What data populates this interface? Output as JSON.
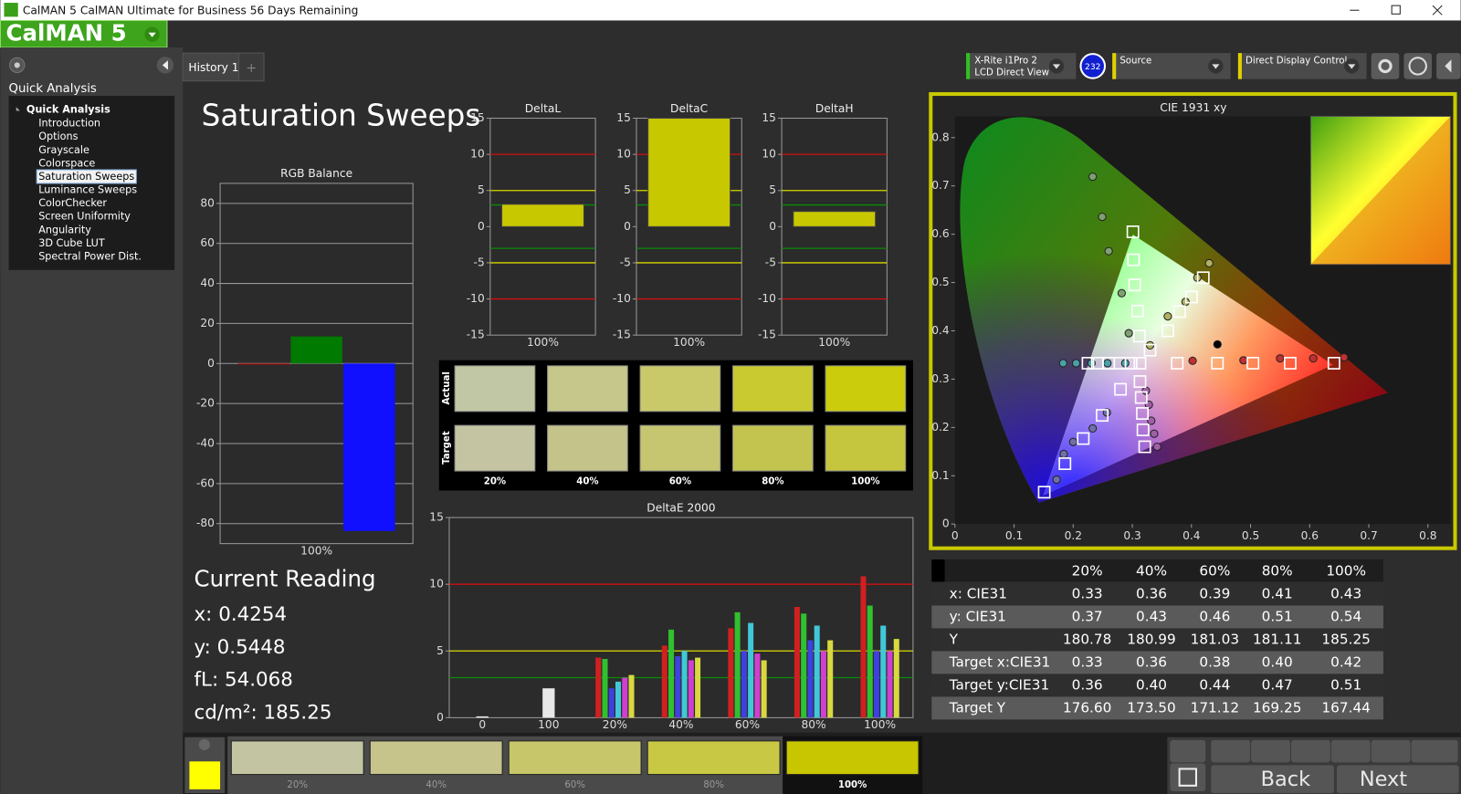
{
  "window": {
    "title": "CalMAN 5 CalMAN Ultimate for Business 56 Days Remaining",
    "logo": "CalMAN 5"
  },
  "sidebar": {
    "heading": "Quick Analysis",
    "tree_root": "Quick Analysis",
    "items": [
      "Introduction",
      "Options",
      "Grayscale",
      "Colorspace",
      "Saturation Sweeps",
      "Luminance Sweeps",
      "ColorChecker",
      "Screen Uniformity",
      "Angularity",
      "3D Cube LUT",
      "Spectral Power Dist."
    ],
    "selected": 4
  },
  "tabs": [
    "History 1"
  ],
  "devices": {
    "meter": "X-Rite i1Pro 2",
    "meter_mode": "LCD Direct View",
    "badge": "232",
    "source": "Source",
    "display": "Direct Display Control"
  },
  "page_title": "Saturation Sweeps",
  "current_reading": {
    "title": "Current Reading",
    "lines": [
      "x: 0.4254",
      "y: 0.5448",
      "fL: 54.068",
      "cd/m²: 185.25"
    ]
  },
  "swatches": {
    "row_labels": [
      "Actual",
      "Target"
    ],
    "labels": [
      "20%",
      "40%",
      "60%",
      "80%",
      "100%"
    ],
    "actual_colors": [
      "#c1c6a4",
      "#c6c78a",
      "#c9c96a",
      "#c9ca30",
      "#cacc0c"
    ],
    "target_colors": [
      "#c4c4a2",
      "#c4c38a",
      "#c6c570",
      "#c3c350",
      "#c5c53e"
    ]
  },
  "table": {
    "header": [
      "20%",
      "40%",
      "60%",
      "80%",
      "100%"
    ],
    "rows": [
      {
        "label": "x: CIE31",
        "cells": [
          "0.33",
          "0.36",
          "0.39",
          "0.41",
          "0.43"
        ]
      },
      {
        "label": "y: CIE31",
        "cells": [
          "0.37",
          "0.43",
          "0.46",
          "0.51",
          "0.54"
        ]
      },
      {
        "label": "Y",
        "cells": [
          "180.78",
          "180.99",
          "181.03",
          "181.11",
          "185.25"
        ]
      },
      {
        "label": "Target x:CIE31",
        "cells": [
          "0.33",
          "0.36",
          "0.38",
          "0.40",
          "0.42"
        ]
      },
      {
        "label": "Target y:CIE31",
        "cells": [
          "0.36",
          "0.40",
          "0.44",
          "0.47",
          "0.51"
        ]
      },
      {
        "label": "Target Y",
        "cells": [
          "176.60",
          "173.50",
          "171.12",
          "169.25",
          "167.44"
        ]
      }
    ]
  },
  "filmstrip": {
    "labels": [
      "20%",
      "40%",
      "60%",
      "80%",
      "100%"
    ],
    "colors": [
      "#c3c5a2",
      "#c6c48a",
      "#c7c66a",
      "#c8c845",
      "#c8c600"
    ],
    "selected": 4
  },
  "nav": {
    "back": "Back",
    "next": "Next"
  },
  "chart_data": [
    {
      "type": "bar",
      "title": "RGB Balance",
      "categories": [
        "100%"
      ],
      "series": [
        {
          "color": "#b00000",
          "values": [
            -0.5
          ]
        },
        {
          "color": "#007a00",
          "values": [
            13.5
          ]
        },
        {
          "color": "#1010ff",
          "values": [
            -83.7
          ]
        }
      ],
      "ylim": [
        -90,
        90
      ],
      "yticks": [
        -80,
        -60,
        -40,
        -20,
        0,
        20,
        40,
        60,
        80
      ],
      "grid": true
    },
    {
      "type": "bar",
      "title": "DeltaL",
      "categories": [
        "100%"
      ],
      "values": [
        3.1
      ],
      "color": "#c8c800",
      "ylim": [
        -15,
        15
      ],
      "yticks": [
        -15,
        -10,
        -5,
        0,
        5,
        10,
        15
      ],
      "reference_lines": [
        {
          "value": 10,
          "color": "#d01010"
        },
        {
          "value": 5,
          "color": "#d8d800"
        },
        {
          "value": 3,
          "color": "#0a8a0a"
        },
        {
          "value": -3,
          "color": "#0a8a0a"
        },
        {
          "value": -5,
          "color": "#d8d800"
        },
        {
          "value": -10,
          "color": "#d01010"
        }
      ]
    },
    {
      "type": "bar",
      "title": "DeltaC",
      "categories": [
        "100%"
      ],
      "values": [
        15
      ],
      "color": "#c8c800",
      "ylim": [
        -15,
        15
      ],
      "yticks": [
        -15,
        -10,
        -5,
        0,
        5,
        10,
        15
      ],
      "reference_lines": [
        {
          "value": 10,
          "color": "#d01010"
        },
        {
          "value": 5,
          "color": "#d8d800"
        },
        {
          "value": 3,
          "color": "#0a8a0a"
        },
        {
          "value": -3,
          "color": "#0a8a0a"
        },
        {
          "value": -5,
          "color": "#d8d800"
        },
        {
          "value": -10,
          "color": "#d01010"
        }
      ]
    },
    {
      "type": "bar",
      "title": "DeltaH",
      "categories": [
        "100%"
      ],
      "values": [
        2.1
      ],
      "color": "#c8c800",
      "ylim": [
        -15,
        15
      ],
      "yticks": [
        -15,
        -10,
        -5,
        0,
        5,
        10,
        15
      ],
      "reference_lines": [
        {
          "value": 10,
          "color": "#d01010"
        },
        {
          "value": 5,
          "color": "#d8d800"
        },
        {
          "value": 3,
          "color": "#0a8a0a"
        },
        {
          "value": -3,
          "color": "#0a8a0a"
        },
        {
          "value": -5,
          "color": "#d8d800"
        },
        {
          "value": -10,
          "color": "#d01010"
        }
      ]
    },
    {
      "type": "bar",
      "title": "DeltaE 2000",
      "categories": [
        "0",
        "100",
        "20%",
        "40%",
        "60%",
        "80%",
        "100%"
      ],
      "series": [
        {
          "color": "#e8e8e8",
          "values": [
            0.1,
            2.2,
            null,
            null,
            null,
            null,
            null
          ]
        },
        {
          "color": "#d02020",
          "values": [
            null,
            null,
            4.5,
            5.4,
            6.7,
            8.3,
            10.6
          ]
        },
        {
          "color": "#30c030",
          "values": [
            null,
            null,
            4.4,
            6.6,
            7.9,
            7.8,
            8.4
          ]
        },
        {
          "color": "#4040e0",
          "values": [
            null,
            null,
            2.2,
            4.6,
            5.0,
            5.8,
            5.0
          ]
        },
        {
          "color": "#40c8d8",
          "values": [
            null,
            null,
            2.7,
            5.0,
            7.1,
            6.9,
            6.9
          ]
        },
        {
          "color": "#d040d0",
          "values": [
            null,
            null,
            3.0,
            4.3,
            4.8,
            5.0,
            5.0
          ]
        },
        {
          "color": "#d8d840",
          "values": [
            null,
            null,
            3.2,
            4.5,
            4.3,
            5.8,
            5.9
          ]
        }
      ],
      "ylim": [
        0,
        15
      ],
      "yticks": [
        0,
        5,
        10,
        15
      ],
      "reference_lines": [
        {
          "value": 10,
          "color": "#d01010"
        },
        {
          "value": 5,
          "color": "#d8d800"
        },
        {
          "value": 3,
          "color": "#0a8a0a"
        }
      ]
    },
    {
      "type": "scatter",
      "title": "CIE 1931 xy",
      "xlim": [
        0,
        0.838
      ],
      "ylim": [
        0,
        0.844
      ],
      "xticks": [
        0,
        0.1,
        0.2,
        0.3,
        0.4,
        0.5,
        0.6,
        0.7,
        0.8
      ],
      "yticks": [
        0,
        0.1,
        0.2,
        0.3,
        0.4,
        0.5,
        0.6,
        0.7,
        0.8
      ],
      "series": [
        {
          "marker": "circle",
          "color": "#7fa070",
          "x": [
            0.294,
            0.282,
            0.26,
            0.249,
            0.233
          ],
          "y": [
            0.395,
            0.478,
            0.565,
            0.636,
            0.719
          ]
        },
        {
          "marker": "circle",
          "color": "#c03030",
          "x": [
            0.402,
            0.488,
            0.55,
            0.606,
            0.658
          ],
          "y": [
            0.338,
            0.339,
            0.343,
            0.343,
            0.345
          ]
        },
        {
          "marker": "circle",
          "color": "#7070a8",
          "x": [
            0.257,
            0.233,
            0.2,
            0.184,
            0.172
          ],
          "y": [
            0.231,
            0.198,
            0.17,
            0.145,
            0.092
          ]
        },
        {
          "marker": "circle",
          "color": "#4aa0a8",
          "x": [
            0.288,
            0.258,
            0.231,
            0.205,
            0.183
          ],
          "y": [
            0.333,
            0.333,
            0.333,
            0.333,
            0.333
          ]
        },
        {
          "marker": "circle",
          "color": "#a060a8",
          "x": [
            0.323,
            0.328,
            0.332,
            0.337,
            0.342
          ],
          "y": [
            0.276,
            0.247,
            0.214,
            0.187,
            0.16
          ]
        },
        {
          "marker": "circle",
          "color": "#b0b060",
          "x": [
            0.33,
            0.36,
            0.39,
            0.41,
            0.43
          ],
          "y": [
            0.37,
            0.43,
            0.46,
            0.51,
            0.54
          ]
        },
        {
          "marker": "circle",
          "color": "#000000",
          "x": [
            0.444
          ],
          "y": [
            0.372
          ]
        },
        {
          "marker": "square",
          "color": "#ffffff",
          "x": [
            0.312,
            0.309,
            0.304,
            0.302,
            0.301
          ],
          "y": [
            0.389,
            0.441,
            0.495,
            0.547,
            0.605
          ]
        },
        {
          "marker": "square",
          "color": "#ffffff",
          "x": [
            0.376,
            0.444,
            0.504,
            0.567,
            0.641
          ],
          "y": [
            0.333,
            0.333,
            0.333,
            0.333,
            0.333
          ]
        },
        {
          "marker": "square",
          "color": "#ffffff",
          "x": [
            0.28,
            0.249,
            0.217,
            0.186,
            0.151
          ],
          "y": [
            0.279,
            0.225,
            0.177,
            0.125,
            0.066
          ]
        },
        {
          "marker": "square",
          "color": "#ffffff",
          "x": [
            0.298,
            0.279,
            0.26,
            0.241,
            0.225
          ],
          "y": [
            0.333,
            0.333,
            0.333,
            0.333,
            0.333
          ]
        },
        {
          "marker": "square",
          "color": "#ffffff",
          "x": [
            0.313,
            0.315,
            0.317,
            0.318,
            0.321
          ],
          "y": [
            0.295,
            0.262,
            0.229,
            0.195,
            0.16
          ]
        },
        {
          "marker": "square",
          "color": "#ffffff",
          "x": [
            0.33,
            0.36,
            0.38,
            0.4,
            0.42
          ],
          "y": [
            0.36,
            0.4,
            0.44,
            0.47,
            0.51
          ]
        },
        {
          "marker": "square",
          "color": "#ffffff",
          "x": [
            0.313
          ],
          "y": [
            0.333
          ]
        }
      ]
    }
  ]
}
